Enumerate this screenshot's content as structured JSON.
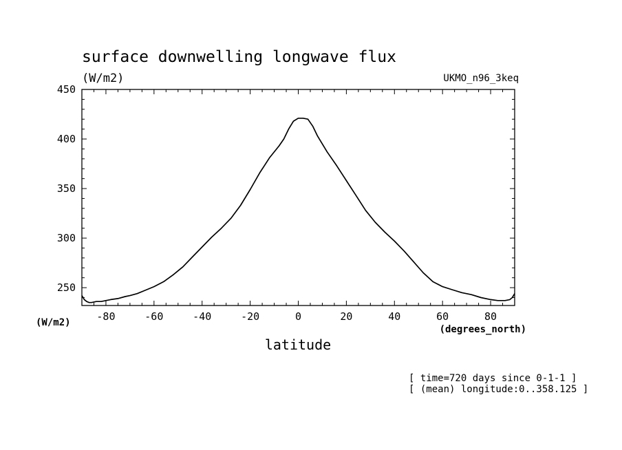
{
  "chart_data": {
    "type": "line",
    "title": "surface downwelling longwave flux",
    "units_label": "(W/m2)",
    "model_label": "UKMO_n96_3keq",
    "yaxis_unit_label": "(W/m2)",
    "xaxis_unit_label": "(degrees_north)",
    "xlabel": "latitude",
    "xlim": [
      -90,
      90
    ],
    "ylim": [
      232,
      450
    ],
    "xticks": [
      -80,
      -60,
      -40,
      -20,
      0,
      20,
      40,
      60,
      80
    ],
    "yticks": [
      250,
      300,
      350,
      400,
      450
    ],
    "series": [
      {
        "x": [
          -90,
          -89,
          -88,
          -87,
          -86,
          -84,
          -82,
          -80,
          -78,
          -75,
          -72,
          -70,
          -67,
          -64,
          -60,
          -56,
          -52,
          -48,
          -44,
          -40,
          -36,
          -32,
          -28,
          -24,
          -20,
          -16,
          -12,
          -8,
          -6,
          -4,
          -2,
          0,
          2,
          4,
          6,
          8,
          12,
          16,
          20,
          24,
          28,
          32,
          36,
          40,
          44,
          48,
          52,
          56,
          60,
          64,
          68,
          72,
          76,
          80,
          83,
          86,
          88,
          89,
          90
        ],
        "y": [
          242,
          238,
          236,
          235,
          235,
          236,
          236,
          237,
          238,
          239,
          241,
          242,
          244,
          247,
          251,
          256,
          263,
          271,
          281,
          291,
          301,
          310,
          320,
          333,
          349,
          366,
          381,
          393,
          400,
          410,
          418,
          421,
          421,
          420,
          413,
          403,
          387,
          373,
          358,
          343,
          328,
          316,
          306,
          297,
          287,
          276,
          265,
          256,
          251,
          248,
          245,
          243,
          240,
          238,
          237,
          237,
          238,
          240,
          244
        ]
      }
    ],
    "annotations": [
      "[ time=720 days since 0-1-1 ]",
      "[ (mean) longitude:0..358.125 ]"
    ],
    "grid": false,
    "line_color": "#000000"
  }
}
